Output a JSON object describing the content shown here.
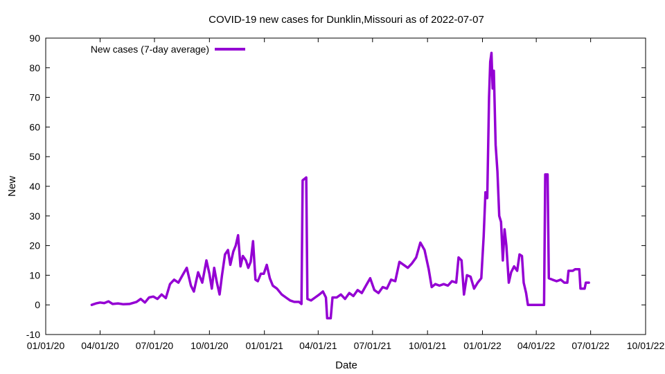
{
  "chart_data": {
    "type": "line",
    "title": "COVID-19 new cases for Dunklin,Missouri as of 2022-07-07",
    "xlabel": "Date",
    "ylabel": "New",
    "xlim": [
      "2020-01-01",
      "2022-10-01"
    ],
    "ylim": [
      -10,
      90
    ],
    "x_ticks": [
      {
        "date": "2020-01-01",
        "label": "01/01/20"
      },
      {
        "date": "2020-04-01",
        "label": "04/01/20"
      },
      {
        "date": "2020-07-01",
        "label": "07/01/20"
      },
      {
        "date": "2020-10-01",
        "label": "10/01/20"
      },
      {
        "date": "2021-01-01",
        "label": "01/01/21"
      },
      {
        "date": "2021-04-01",
        "label": "04/01/21"
      },
      {
        "date": "2021-07-01",
        "label": "07/01/21"
      },
      {
        "date": "2021-10-01",
        "label": "10/01/21"
      },
      {
        "date": "2022-01-01",
        "label": "01/01/22"
      },
      {
        "date": "2022-04-01",
        "label": "04/01/22"
      },
      {
        "date": "2022-07-01",
        "label": "07/01/22"
      },
      {
        "date": "2022-10-01",
        "label": "10/01/22"
      }
    ],
    "y_ticks": [
      -10,
      0,
      10,
      20,
      30,
      40,
      50,
      60,
      70,
      80,
      90
    ],
    "grid": false,
    "legend_position": "top-left",
    "series": [
      {
        "name": "New cases (7-day average)",
        "color": "#9400d3",
        "points": [
          [
            "2020-03-18",
            0
          ],
          [
            "2020-03-25",
            0.5
          ],
          [
            "2020-04-01",
            0.8
          ],
          [
            "2020-04-08",
            0.6
          ],
          [
            "2020-04-15",
            1.2
          ],
          [
            "2020-04-22",
            0.3
          ],
          [
            "2020-05-01",
            0.5
          ],
          [
            "2020-05-10",
            0.2
          ],
          [
            "2020-05-20",
            0.3
          ],
          [
            "2020-06-01",
            1.0
          ],
          [
            "2020-06-08",
            2.0
          ],
          [
            "2020-06-15",
            0.8
          ],
          [
            "2020-06-22",
            2.5
          ],
          [
            "2020-06-29",
            2.8
          ],
          [
            "2020-07-06",
            2.0
          ],
          [
            "2020-07-13",
            3.5
          ],
          [
            "2020-07-20",
            2.3
          ],
          [
            "2020-07-27",
            7.0
          ],
          [
            "2020-08-03",
            8.5
          ],
          [
            "2020-08-10",
            7.5
          ],
          [
            "2020-08-17",
            10.0
          ],
          [
            "2020-08-24",
            12.5
          ],
          [
            "2020-08-31",
            6.5
          ],
          [
            "2020-09-05",
            4.5
          ],
          [
            "2020-09-12",
            11.0
          ],
          [
            "2020-09-19",
            7.5
          ],
          [
            "2020-09-26",
            15.0
          ],
          [
            "2020-10-01",
            10.5
          ],
          [
            "2020-10-05",
            5.5
          ],
          [
            "2020-10-09",
            12.5
          ],
          [
            "2020-10-13",
            8.0
          ],
          [
            "2020-10-18",
            3.5
          ],
          [
            "2020-10-22",
            10.0
          ],
          [
            "2020-10-27",
            17.0
          ],
          [
            "2020-11-01",
            18.5
          ],
          [
            "2020-11-05",
            13.5
          ],
          [
            "2020-11-10",
            18.0
          ],
          [
            "2020-11-14",
            20.0
          ],
          [
            "2020-11-18",
            23.5
          ],
          [
            "2020-11-22",
            13.0
          ],
          [
            "2020-11-26",
            16.5
          ],
          [
            "2020-12-01",
            15.0
          ],
          [
            "2020-12-05",
            12.5
          ],
          [
            "2020-12-09",
            14.5
          ],
          [
            "2020-12-13",
            21.5
          ],
          [
            "2020-12-17",
            8.5
          ],
          [
            "2020-12-21",
            8.0
          ],
          [
            "2020-12-26",
            10.5
          ],
          [
            "2020-12-31",
            10.5
          ],
          [
            "2021-01-05",
            13.5
          ],
          [
            "2021-01-10",
            9.0
          ],
          [
            "2021-01-15",
            6.5
          ],
          [
            "2021-01-22",
            5.5
          ],
          [
            "2021-01-30",
            3.5
          ],
          [
            "2021-02-06",
            2.5
          ],
          [
            "2021-02-13",
            1.5
          ],
          [
            "2021-02-20",
            1.0
          ],
          [
            "2021-02-28",
            1.0
          ],
          [
            "2021-03-04",
            0.3
          ],
          [
            "2021-03-06",
            42.0
          ],
          [
            "2021-03-12",
            43.0
          ],
          [
            "2021-03-14",
            2.0
          ],
          [
            "2021-03-20",
            1.5
          ],
          [
            "2021-03-27",
            2.5
          ],
          [
            "2021-04-03",
            3.5
          ],
          [
            "2021-04-09",
            4.5
          ],
          [
            "2021-04-14",
            2.5
          ],
          [
            "2021-04-16",
            -4.5
          ],
          [
            "2021-04-22",
            -4.5
          ],
          [
            "2021-04-25",
            2.5
          ],
          [
            "2021-05-02",
            2.5
          ],
          [
            "2021-05-09",
            3.5
          ],
          [
            "2021-05-16",
            2.0
          ],
          [
            "2021-05-23",
            4.0
          ],
          [
            "2021-05-30",
            3.0
          ],
          [
            "2021-06-06",
            5.0
          ],
          [
            "2021-06-13",
            4.0
          ],
          [
            "2021-06-20",
            6.5
          ],
          [
            "2021-06-27",
            9.0
          ],
          [
            "2021-07-04",
            5.0
          ],
          [
            "2021-07-11",
            4.0
          ],
          [
            "2021-07-18",
            6.0
          ],
          [
            "2021-07-25",
            5.5
          ],
          [
            "2021-08-01",
            8.5
          ],
          [
            "2021-08-08",
            8.0
          ],
          [
            "2021-08-15",
            14.5
          ],
          [
            "2021-08-22",
            13.5
          ],
          [
            "2021-08-29",
            12.5
          ],
          [
            "2021-09-05",
            14.0
          ],
          [
            "2021-09-12",
            16.0
          ],
          [
            "2021-09-19",
            21.0
          ],
          [
            "2021-09-26",
            18.5
          ],
          [
            "2021-10-03",
            12.0
          ],
          [
            "2021-10-08",
            6.0
          ],
          [
            "2021-10-14",
            7.0
          ],
          [
            "2021-10-21",
            6.5
          ],
          [
            "2021-10-28",
            7.0
          ],
          [
            "2021-11-04",
            6.5
          ],
          [
            "2021-11-11",
            8.0
          ],
          [
            "2021-11-18",
            7.5
          ],
          [
            "2021-11-22",
            16.0
          ],
          [
            "2021-11-27",
            15.0
          ],
          [
            "2021-12-01",
            3.5
          ],
          [
            "2021-12-06",
            10.0
          ],
          [
            "2021-12-12",
            9.5
          ],
          [
            "2021-12-18",
            5.5
          ],
          [
            "2021-12-24",
            7.5
          ],
          [
            "2021-12-30",
            9.0
          ],
          [
            "2022-01-03",
            23.0
          ],
          [
            "2022-01-06",
            38.0
          ],
          [
            "2022-01-09",
            36.0
          ],
          [
            "2022-01-12",
            70.0
          ],
          [
            "2022-01-14",
            82.0
          ],
          [
            "2022-01-16",
            85.0
          ],
          [
            "2022-01-18",
            73.0
          ],
          [
            "2022-01-20",
            79.0
          ],
          [
            "2022-01-23",
            54.0
          ],
          [
            "2022-01-26",
            45.0
          ],
          [
            "2022-01-29",
            30.0
          ],
          [
            "2022-02-01",
            28.0
          ],
          [
            "2022-02-04",
            15.0
          ],
          [
            "2022-02-07",
            25.5
          ],
          [
            "2022-02-10",
            20.0
          ],
          [
            "2022-02-14",
            7.5
          ],
          [
            "2022-02-18",
            11.0
          ],
          [
            "2022-02-23",
            13.0
          ],
          [
            "2022-02-28",
            11.5
          ],
          [
            "2022-03-04",
            17.0
          ],
          [
            "2022-03-08",
            16.5
          ],
          [
            "2022-03-11",
            7.5
          ],
          [
            "2022-03-15",
            4.0
          ],
          [
            "2022-03-18",
            0
          ],
          [
            "2022-04-14",
            0
          ],
          [
            "2022-04-16",
            44.0
          ],
          [
            "2022-04-20",
            44.0
          ],
          [
            "2022-04-22",
            9.0
          ],
          [
            "2022-04-28",
            8.5
          ],
          [
            "2022-05-05",
            8.0
          ],
          [
            "2022-05-12",
            8.5
          ],
          [
            "2022-05-18",
            7.5
          ],
          [
            "2022-05-23",
            7.5
          ],
          [
            "2022-05-25",
            11.5
          ],
          [
            "2022-06-01",
            11.5
          ],
          [
            "2022-06-05",
            12.0
          ],
          [
            "2022-06-12",
            12.0
          ],
          [
            "2022-06-14",
            5.5
          ],
          [
            "2022-06-21",
            5.5
          ],
          [
            "2022-06-23",
            7.5
          ],
          [
            "2022-06-28",
            7.5
          ]
        ]
      }
    ]
  }
}
